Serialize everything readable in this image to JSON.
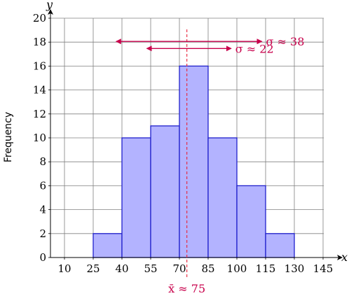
{
  "chart_data": {
    "type": "bar",
    "subtype": "histogram",
    "bins": [
      [
        10,
        25
      ],
      [
        25,
        40
      ],
      [
        40,
        55
      ],
      [
        55,
        70
      ],
      [
        70,
        85
      ],
      [
        85,
        100
      ],
      [
        100,
        115
      ],
      [
        115,
        130
      ],
      [
        130,
        145
      ]
    ],
    "x_tick_labels": [
      "10",
      "25",
      "40",
      "55",
      "70",
      "85",
      "100",
      "115",
      "130",
      "145"
    ],
    "values": [
      0,
      2,
      10,
      11,
      16,
      10,
      6,
      2,
      0
    ],
    "y_ticks": [
      "0",
      "2",
      "4",
      "6",
      "8",
      "10",
      "12",
      "14",
      "16",
      "18",
      "20"
    ],
    "xlabel": "x",
    "ylabel": "Frequency",
    "y_axis_letter": "y",
    "ylim": [
      0,
      20
    ],
    "xlim": [
      10,
      145
    ],
    "grid": true,
    "legend": false,
    "mean": {
      "value": 75,
      "label": "x̄ ≈ 75"
    },
    "spreads": [
      {
        "label": "σ ≈ 38",
        "from": 37,
        "to": 113,
        "y": 18
      },
      {
        "label": "σ ≈ 22",
        "from": 53,
        "to": 97,
        "y": 17
      }
    ],
    "colors": {
      "bar_fill": "#b3b3ff",
      "bar_stroke": "#2020cc",
      "grid": "#808080",
      "annotation": "#c8004b",
      "mean_line": "#e8223a"
    }
  }
}
